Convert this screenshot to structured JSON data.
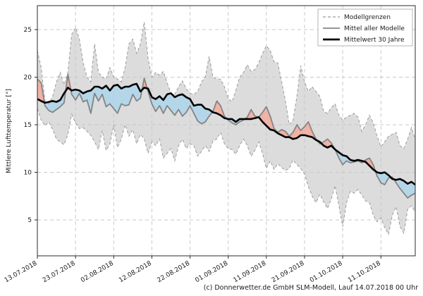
{
  "figure": {
    "title": "",
    "footer_credit": "(c) Donnerwetter.de GmbH SLM-Modell, Lauf 14.07.2018 00 Uhr"
  },
  "chart_data": {
    "type": "line",
    "title": "",
    "xlabel": "",
    "ylabel": "Mittlere Lufttemperatur [°]",
    "grid": true,
    "legend_position": "upper right (inside axes)",
    "start_date": "13.07.2018",
    "end_date": "20.10.2018",
    "x_resolution": "daily",
    "days_total": 100,
    "x_tick_days": [
      0,
      10,
      20,
      30,
      40,
      50,
      60,
      70,
      80,
      90
    ],
    "x_tick_labels": [
      "13.07.2018",
      "23.07.2018",
      "02.08.2018",
      "12.08.2018",
      "22.08.2018",
      "01.09.2018",
      "11.09.2018",
      "21.09.2018",
      "01.10.2018",
      "11.10.2018"
    ],
    "y_ticks": [
      5,
      10,
      15,
      20,
      25
    ],
    "y_tick_labels": [
      "5",
      "10",
      "15",
      "20",
      "25"
    ],
    "ylim": [
      1.2,
      27.5
    ],
    "legend": [
      {
        "label": "Modellgrenzen",
        "style": "dashed-gray"
      },
      {
        "label": "Mittel aller Modelle",
        "style": "solid-gray"
      },
      {
        "label": "Mittelwert 30 Jahre",
        "style": "solid-black-thick"
      }
    ],
    "colors": {
      "band_fill": "#dcdcdc",
      "bound_line": "#9b9b9b",
      "model_mean_line": "#848484",
      "mean_30y_line": "#000000",
      "above_mean_fill": "#f2b1a4",
      "below_mean_fill": "#b4d6e9",
      "grid_line": "#c9c9c9",
      "spine": "#2b2b2b",
      "background": "#ffffff"
    },
    "series": [
      {
        "name": "Modellgrenzen (obere Grenze)",
        "role": "upper_bound",
        "values": [
          22.8,
          21.0,
          17.5,
          17.2,
          18.0,
          19.5,
          20.5,
          19.2,
          20.5,
          24.5,
          25.2,
          24.0,
          21.5,
          20.0,
          19.5,
          23.5,
          20.5,
          20.0,
          19.8,
          21.0,
          20.0,
          19.8,
          19.5,
          21.0,
          23.5,
          24.0,
          22.5,
          23.5,
          25.8,
          22.0,
          20.0,
          20.5,
          20.2,
          20.6,
          19.4,
          18.3,
          18.2,
          19.0,
          19.6,
          18.8,
          18.3,
          18.2,
          18.5,
          19.5,
          20.0,
          22.2,
          20.0,
          19.8,
          19.8,
          19.0,
          17.8,
          17.4,
          18.6,
          20.0,
          20.5,
          21.3,
          20.6,
          20.8,
          21.5,
          22.5,
          23.3,
          22.8,
          21.6,
          21.5,
          19.5,
          17.5,
          15.0,
          15.5,
          18.0,
          21.2,
          19.5,
          18.5,
          19.0,
          18.5,
          18.0,
          16.4,
          16.2,
          16.8,
          17.2,
          16.0,
          15.5,
          15.8,
          16.0,
          16.2,
          15.8,
          14.3,
          15.0,
          16.0,
          15.2,
          13.8,
          12.7,
          13.2,
          13.8,
          14.0,
          14.2,
          12.8,
          12.5,
          13.5,
          14.7,
          13.5
        ]
      },
      {
        "name": "Modellgrenzen (untere Grenze)",
        "role": "lower_bound",
        "values": [
          16.7,
          15.5,
          14.9,
          15.3,
          14.5,
          13.5,
          13.2,
          12.9,
          14.0,
          16.1,
          15.2,
          14.6,
          14.7,
          14.3,
          13.9,
          13.2,
          12.4,
          14.4,
          12.3,
          13.0,
          15.0,
          12.6,
          13.5,
          15.0,
          13.8,
          14.5,
          13.0,
          14.0,
          13.5,
          12.0,
          13.2,
          12.8,
          13.5,
          11.5,
          12.0,
          12.5,
          11.2,
          12.8,
          13.5,
          12.5,
          13.0,
          12.8,
          11.7,
          12.2,
          12.8,
          12.2,
          13.3,
          13.5,
          14.2,
          13.0,
          12.5,
          12.4,
          11.9,
          12.8,
          13.5,
          12.8,
          11.7,
          12.3,
          13.2,
          12.0,
          10.4,
          11.2,
          10.3,
          10.9,
          10.5,
          10.2,
          10.4,
          11.3,
          10.8,
          10.4,
          9.8,
          8.5,
          7.5,
          6.8,
          7.7,
          6.9,
          6.2,
          7.2,
          8.6,
          6.5,
          4.3,
          6.8,
          8.0,
          7.8,
          8.2,
          7.6,
          7.0,
          6.8,
          5.5,
          4.8,
          5.2,
          4.2,
          3.5,
          5.5,
          6.4,
          4.3,
          3.6,
          6.1,
          6.5,
          5.8
        ]
      },
      {
        "name": "Mittel aller Modelle",
        "role": "model_mean",
        "values": [
          19.8,
          19.4,
          17.0,
          16.5,
          16.3,
          16.6,
          16.9,
          17.3,
          20.3,
          18.2,
          17.6,
          18.3,
          17.4,
          17.6,
          16.2,
          18.3,
          17.5,
          18.2,
          16.9,
          17.2,
          16.7,
          16.2,
          17.2,
          17.0,
          17.1,
          18.2,
          17.5,
          17.8,
          19.9,
          18.5,
          17.2,
          16.4,
          17.0,
          16.2,
          17.0,
          16.5,
          16.0,
          16.6,
          15.9,
          16.3,
          17.0,
          16.2,
          15.4,
          15.1,
          15.3,
          15.9,
          16.4,
          17.5,
          17.0,
          15.9,
          15.5,
          15.2,
          15.0,
          15.3,
          15.5,
          15.8,
          16.6,
          15.9,
          15.8,
          16.3,
          16.9,
          15.9,
          14.6,
          14.2,
          14.5,
          14.3,
          13.8,
          14.2,
          15.0,
          14.4,
          14.8,
          15.3,
          14.3,
          13.5,
          13.0,
          13.2,
          13.5,
          13.1,
          12.4,
          11.5,
          10.8,
          11.2,
          11.0,
          11.1,
          11.2,
          11.0,
          11.3,
          11.5,
          10.8,
          9.6,
          8.9,
          8.7,
          9.4,
          9.5,
          8.9,
          8.3,
          7.8,
          7.3,
          7.6,
          7.8
        ]
      },
      {
        "name": "Mittelwert 30 Jahre",
        "role": "mean_30y",
        "values": [
          17.7,
          17.5,
          17.3,
          17.4,
          17.5,
          17.4,
          17.6,
          18.3,
          18.9,
          18.6,
          18.7,
          18.6,
          18.3,
          18.5,
          18.6,
          19.0,
          19.0,
          18.8,
          19.1,
          18.6,
          19.1,
          19.2,
          18.8,
          19.0,
          19.0,
          19.2,
          19.3,
          18.5,
          18.9,
          18.8,
          17.9,
          17.7,
          18.0,
          17.6,
          18.2,
          18.3,
          17.9,
          18.1,
          18.2,
          17.9,
          17.7,
          17.0,
          17.1,
          17.1,
          16.7,
          16.6,
          16.3,
          16.2,
          16.0,
          15.7,
          15.6,
          15.6,
          15.3,
          15.6,
          15.6,
          15.6,
          15.6,
          15.7,
          15.8,
          15.3,
          14.9,
          14.5,
          14.4,
          14.1,
          13.9,
          13.7,
          13.7,
          13.5,
          13.6,
          13.9,
          13.9,
          13.8,
          13.7,
          13.4,
          13.2,
          12.8,
          12.6,
          12.8,
          12.4,
          12.1,
          11.8,
          11.7,
          11.3,
          11.2,
          11.3,
          11.2,
          11.1,
          10.7,
          10.3,
          10.0,
          9.9,
          10.0,
          9.7,
          9.3,
          9.2,
          9.3,
          9.1,
          8.8,
          9.0,
          8.7
        ]
      }
    ]
  }
}
